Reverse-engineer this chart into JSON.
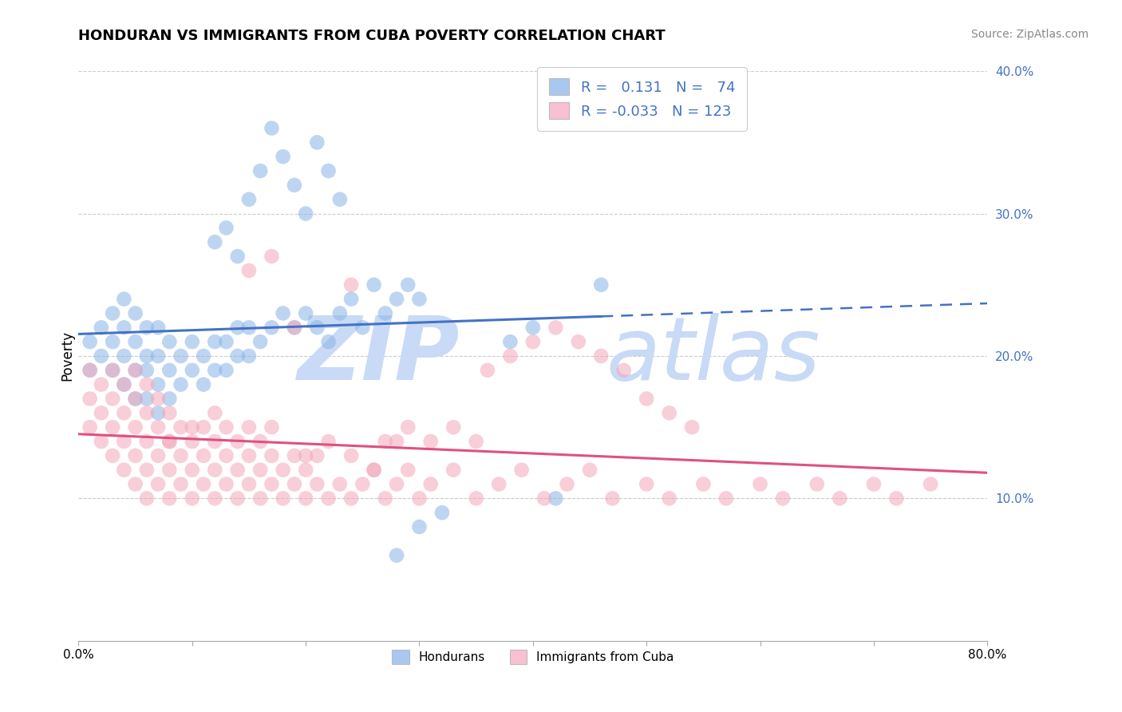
{
  "title": "HONDURAN VS IMMIGRANTS FROM CUBA POVERTY CORRELATION CHART",
  "source": "Source: ZipAtlas.com",
  "ylabel_label": "Poverty",
  "series": [
    {
      "name": "Hondurans",
      "color": "#8ab4e8",
      "R": 0.131,
      "N": 74,
      "points_x": [
        0.01,
        0.01,
        0.02,
        0.02,
        0.03,
        0.03,
        0.03,
        0.04,
        0.04,
        0.04,
        0.04,
        0.05,
        0.05,
        0.05,
        0.05,
        0.06,
        0.06,
        0.06,
        0.06,
        0.07,
        0.07,
        0.07,
        0.07,
        0.08,
        0.08,
        0.08,
        0.09,
        0.09,
        0.1,
        0.1,
        0.11,
        0.11,
        0.12,
        0.12,
        0.13,
        0.13,
        0.14,
        0.14,
        0.15,
        0.15,
        0.16,
        0.17,
        0.18,
        0.19,
        0.2,
        0.21,
        0.22,
        0.23,
        0.24,
        0.25,
        0.26,
        0.27,
        0.28,
        0.29,
        0.3,
        0.17,
        0.18,
        0.19,
        0.2,
        0.21,
        0.22,
        0.23,
        0.12,
        0.13,
        0.14,
        0.15,
        0.16,
        0.28,
        0.3,
        0.32,
        0.38,
        0.4,
        0.42,
        0.46
      ],
      "points_y": [
        0.19,
        0.21,
        0.2,
        0.22,
        0.19,
        0.21,
        0.23,
        0.18,
        0.2,
        0.22,
        0.24,
        0.17,
        0.19,
        0.21,
        0.23,
        0.17,
        0.19,
        0.2,
        0.22,
        0.16,
        0.18,
        0.2,
        0.22,
        0.17,
        0.19,
        0.21,
        0.18,
        0.2,
        0.19,
        0.21,
        0.18,
        0.2,
        0.19,
        0.21,
        0.19,
        0.21,
        0.2,
        0.22,
        0.2,
        0.22,
        0.21,
        0.22,
        0.23,
        0.22,
        0.23,
        0.22,
        0.21,
        0.23,
        0.24,
        0.22,
        0.25,
        0.23,
        0.24,
        0.25,
        0.24,
        0.36,
        0.34,
        0.32,
        0.3,
        0.35,
        0.33,
        0.31,
        0.28,
        0.29,
        0.27,
        0.31,
        0.33,
        0.06,
        0.08,
        0.09,
        0.21,
        0.22,
        0.1,
        0.25
      ]
    },
    {
      "name": "Immigrants from Cuba",
      "color": "#f4a7b9",
      "R": -0.033,
      "N": 123,
      "points_x": [
        0.01,
        0.01,
        0.01,
        0.02,
        0.02,
        0.02,
        0.03,
        0.03,
        0.03,
        0.03,
        0.04,
        0.04,
        0.04,
        0.04,
        0.05,
        0.05,
        0.05,
        0.05,
        0.05,
        0.06,
        0.06,
        0.06,
        0.06,
        0.06,
        0.07,
        0.07,
        0.07,
        0.07,
        0.08,
        0.08,
        0.08,
        0.08,
        0.09,
        0.09,
        0.09,
        0.1,
        0.1,
        0.1,
        0.11,
        0.11,
        0.11,
        0.12,
        0.12,
        0.12,
        0.13,
        0.13,
        0.13,
        0.14,
        0.14,
        0.14,
        0.15,
        0.15,
        0.15,
        0.16,
        0.16,
        0.16,
        0.17,
        0.17,
        0.17,
        0.18,
        0.18,
        0.19,
        0.19,
        0.2,
        0.2,
        0.21,
        0.21,
        0.22,
        0.23,
        0.24,
        0.25,
        0.26,
        0.27,
        0.28,
        0.29,
        0.3,
        0.31,
        0.33,
        0.35,
        0.37,
        0.39,
        0.41,
        0.43,
        0.45,
        0.47,
        0.5,
        0.52,
        0.55,
        0.57,
        0.6,
        0.62,
        0.65,
        0.67,
        0.7,
        0.72,
        0.75,
        0.36,
        0.38,
        0.4,
        0.42,
        0.44,
        0.46,
        0.48,
        0.5,
        0.52,
        0.54,
        0.27,
        0.29,
        0.31,
        0.33,
        0.35,
        0.24,
        0.26,
        0.28,
        0.2,
        0.22,
        0.24,
        0.15,
        0.17,
        0.19,
        0.08,
        0.1,
        0.12
      ],
      "points_y": [
        0.15,
        0.17,
        0.19,
        0.14,
        0.16,
        0.18,
        0.13,
        0.15,
        0.17,
        0.19,
        0.12,
        0.14,
        0.16,
        0.18,
        0.11,
        0.13,
        0.15,
        0.17,
        0.19,
        0.1,
        0.12,
        0.14,
        0.16,
        0.18,
        0.11,
        0.13,
        0.15,
        0.17,
        0.1,
        0.12,
        0.14,
        0.16,
        0.11,
        0.13,
        0.15,
        0.1,
        0.12,
        0.14,
        0.11,
        0.13,
        0.15,
        0.1,
        0.12,
        0.14,
        0.11,
        0.13,
        0.15,
        0.1,
        0.12,
        0.14,
        0.11,
        0.13,
        0.15,
        0.1,
        0.12,
        0.14,
        0.11,
        0.13,
        0.15,
        0.1,
        0.12,
        0.11,
        0.13,
        0.1,
        0.12,
        0.11,
        0.13,
        0.1,
        0.11,
        0.1,
        0.11,
        0.12,
        0.1,
        0.11,
        0.12,
        0.1,
        0.11,
        0.12,
        0.1,
        0.11,
        0.12,
        0.1,
        0.11,
        0.12,
        0.1,
        0.11,
        0.1,
        0.11,
        0.1,
        0.11,
        0.1,
        0.11,
        0.1,
        0.11,
        0.1,
        0.11,
        0.19,
        0.2,
        0.21,
        0.22,
        0.21,
        0.2,
        0.19,
        0.17,
        0.16,
        0.15,
        0.14,
        0.15,
        0.14,
        0.15,
        0.14,
        0.13,
        0.12,
        0.14,
        0.13,
        0.14,
        0.25,
        0.26,
        0.27,
        0.22,
        0.14,
        0.15,
        0.16
      ]
    }
  ],
  "xlim": [
    0.0,
    0.8
  ],
  "ylim": [
    0.0,
    0.4
  ],
  "xticks": [
    0.0,
    0.1,
    0.2,
    0.3,
    0.4,
    0.5,
    0.6,
    0.7,
    0.8
  ],
  "yticks": [
    0.0,
    0.1,
    0.2,
    0.3,
    0.4
  ],
  "xticklabels": [
    "0.0%",
    "",
    "",
    "",
    "",
    "",
    "",
    "",
    "80.0%"
  ],
  "yticklabels": [
    "",
    "10.0%",
    "20.0%",
    "30.0%",
    "40.0%"
  ],
  "blue_line_color": "#4472c4",
  "blue_line_solid_end": 0.46,
  "pink_line_color": "#e05080",
  "dashed_grid_color": "#cccccc",
  "watermark_zip_color": "#c8daf5",
  "watermark_atlas_color": "#c8daf5",
  "legend_blue_color": "#a8c8f0",
  "legend_pink_color": "#f8c0d0",
  "background_color": "#ffffff",
  "title_fontsize": 13,
  "tick_label_color_right": "#4472c4",
  "legend_R_N_color": "#4472c4",
  "marker_size": 180,
  "marker_alpha": 0.55
}
